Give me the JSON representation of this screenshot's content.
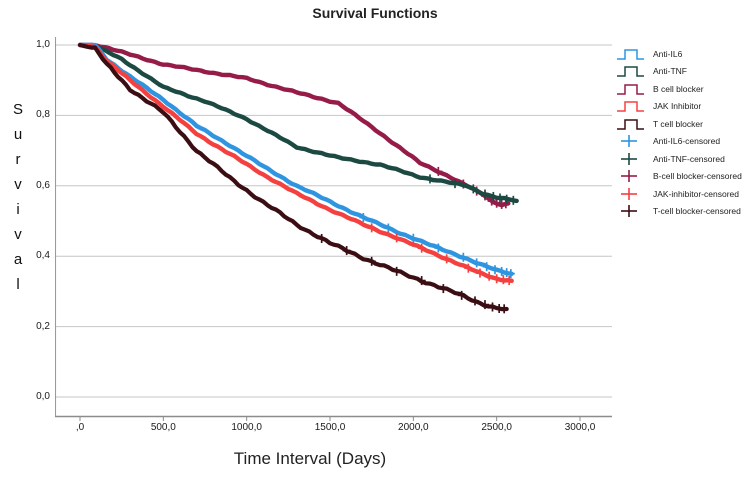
{
  "chart": {
    "title": "Survival Functions",
    "xlabel": "Time Interval (Days)",
    "ylabel": "Survival"
  },
  "chart_data": {
    "type": "line",
    "subtype": "kaplan-meier-survival-step",
    "title": "Survival Functions",
    "xlabel": "Time Interval (Days)",
    "ylabel": "Survival",
    "xlim": [
      -150,
      3200
    ],
    "ylim": [
      0,
      1.06
    ],
    "grid": "horizontal-only",
    "legend_position": "right-outside",
    "background_color": "#ffffff",
    "gridline_color": "#c6c6c6",
    "axis_color": "#8c8c8c",
    "x_axis": {
      "ticks": [
        0,
        500,
        1000,
        1500,
        2000,
        2500,
        3000
      ],
      "tick_labels": [
        ",0",
        "500,0",
        "1000,0",
        "1500,0",
        "2000,0",
        "2500,0",
        "3000,0"
      ]
    },
    "y_axis": {
      "ticks": [
        0,
        0.2,
        0.4,
        0.6,
        0.8,
        1.0
      ],
      "tick_labels": [
        "0,0",
        "0,2",
        "0,4",
        "0,6",
        "0,8",
        "1,0"
      ]
    },
    "series": [
      {
        "name": "B cell blocker",
        "color": "#951c48",
        "stroke_width": 4.4,
        "roughness": 0.8,
        "points": [
          [
            0,
            1.0
          ],
          [
            100,
            1.0
          ],
          [
            250,
            0.98
          ],
          [
            500,
            0.945
          ],
          [
            750,
            0.925
          ],
          [
            1000,
            0.905
          ],
          [
            1300,
            0.865
          ],
          [
            1550,
            0.835
          ],
          [
            1800,
            0.75
          ],
          [
            2040,
            0.665
          ],
          [
            2200,
            0.63
          ],
          [
            2320,
            0.6
          ],
          [
            2420,
            0.575
          ],
          [
            2480,
            0.553
          ],
          [
            2530,
            0.547
          ],
          [
            2570,
            0.55
          ]
        ],
        "censored_days": [
          2150,
          2300,
          2380,
          2430,
          2470,
          2500,
          2530,
          2555
        ]
      },
      {
        "name": "Anti-TNF",
        "color": "#1c4a43",
        "stroke_width": 4.4,
        "roughness": 0.8,
        "points": [
          [
            0,
            1.0
          ],
          [
            100,
            0.995
          ],
          [
            250,
            0.96
          ],
          [
            500,
            0.88
          ],
          [
            750,
            0.84
          ],
          [
            1000,
            0.79
          ],
          [
            1300,
            0.71
          ],
          [
            1550,
            0.68
          ],
          [
            1800,
            0.66
          ],
          [
            2040,
            0.625
          ],
          [
            2320,
            0.6
          ],
          [
            2420,
            0.578
          ],
          [
            2500,
            0.567
          ],
          [
            2620,
            0.557
          ]
        ],
        "censored_days": [
          2100,
          2250,
          2360,
          2430,
          2480,
          2520,
          2560,
          2600
        ]
      },
      {
        "name": "Anti-IL6",
        "color": "#2f95e0",
        "stroke_width": 4.4,
        "roughness": 0.9,
        "points": [
          [
            0,
            1.0
          ],
          [
            90,
            1.0
          ],
          [
            160,
            0.96
          ],
          [
            300,
            0.91
          ],
          [
            500,
            0.845
          ],
          [
            700,
            0.77
          ],
          [
            900,
            0.715
          ],
          [
            1100,
            0.655
          ],
          [
            1300,
            0.6
          ],
          [
            1500,
            0.555
          ],
          [
            1700,
            0.51
          ],
          [
            1900,
            0.47
          ],
          [
            2100,
            0.432
          ],
          [
            2300,
            0.397
          ],
          [
            2400,
            0.377
          ],
          [
            2500,
            0.36
          ],
          [
            2590,
            0.35
          ]
        ],
        "censored_days": [
          1700,
          1850,
          2000,
          2150,
          2300,
          2380,
          2440,
          2490,
          2530,
          2560,
          2585
        ]
      },
      {
        "name": "JAK Inhibitor",
        "color": "#f54040",
        "stroke_width": 4.4,
        "roughness": 0.9,
        "points": [
          [
            0,
            1.0
          ],
          [
            90,
            0.995
          ],
          [
            160,
            0.955
          ],
          [
            300,
            0.9
          ],
          [
            500,
            0.825
          ],
          [
            700,
            0.748
          ],
          [
            900,
            0.69
          ],
          [
            1100,
            0.632
          ],
          [
            1300,
            0.578
          ],
          [
            1500,
            0.532
          ],
          [
            1700,
            0.49
          ],
          [
            1900,
            0.452
          ],
          [
            2100,
            0.413
          ],
          [
            2300,
            0.372
          ],
          [
            2400,
            0.352
          ],
          [
            2500,
            0.336
          ],
          [
            2590,
            0.33
          ]
        ],
        "censored_days": [
          1750,
          1900,
          2050,
          2200,
          2330,
          2400,
          2455,
          2500,
          2540,
          2575
        ]
      },
      {
        "name": "T cell blocker",
        "color": "#3a0e13",
        "stroke_width": 4.2,
        "roughness": 1.4,
        "points": [
          [
            0,
            1.0
          ],
          [
            90,
            0.99
          ],
          [
            160,
            0.945
          ],
          [
            300,
            0.875
          ],
          [
            500,
            0.808
          ],
          [
            700,
            0.7
          ],
          [
            900,
            0.622
          ],
          [
            1100,
            0.553
          ],
          [
            1300,
            0.49
          ],
          [
            1500,
            0.437
          ],
          [
            1700,
            0.395
          ],
          [
            1900,
            0.357
          ],
          [
            2100,
            0.322
          ],
          [
            2300,
            0.287
          ],
          [
            2400,
            0.267
          ],
          [
            2500,
            0.252
          ],
          [
            2560,
            0.25
          ]
        ],
        "censored_days": [
          1450,
          1600,
          1750,
          1900,
          2050,
          2180,
          2290,
          2370,
          2430,
          2475,
          2515,
          2545
        ]
      }
    ],
    "legend": [
      {
        "label": "Anti-IL6",
        "symbol": "step",
        "color": "#2f95e0"
      },
      {
        "label": "Anti-TNF",
        "symbol": "step",
        "color": "#1c4a43"
      },
      {
        "label": "B cell blocker",
        "symbol": "step",
        "color": "#951c48"
      },
      {
        "label": "JAK Inhibitor",
        "symbol": "step",
        "color": "#f54040"
      },
      {
        "label": "T cell blocker",
        "symbol": "step",
        "color": "#3a0e13"
      },
      {
        "label": "Anti-IL6-censored",
        "symbol": "plus",
        "color": "#2f95e0"
      },
      {
        "label": "Anti-TNF-censored",
        "symbol": "plus",
        "color": "#1c4a43"
      },
      {
        "label": "B-cell blocker-censored",
        "symbol": "plus",
        "color": "#951c48"
      },
      {
        "label": "JAK-inhibitor-censored",
        "symbol": "plus",
        "color": "#f54040"
      },
      {
        "label": "T-cell blocker-censored",
        "symbol": "plus",
        "color": "#3a0e13"
      }
    ]
  }
}
